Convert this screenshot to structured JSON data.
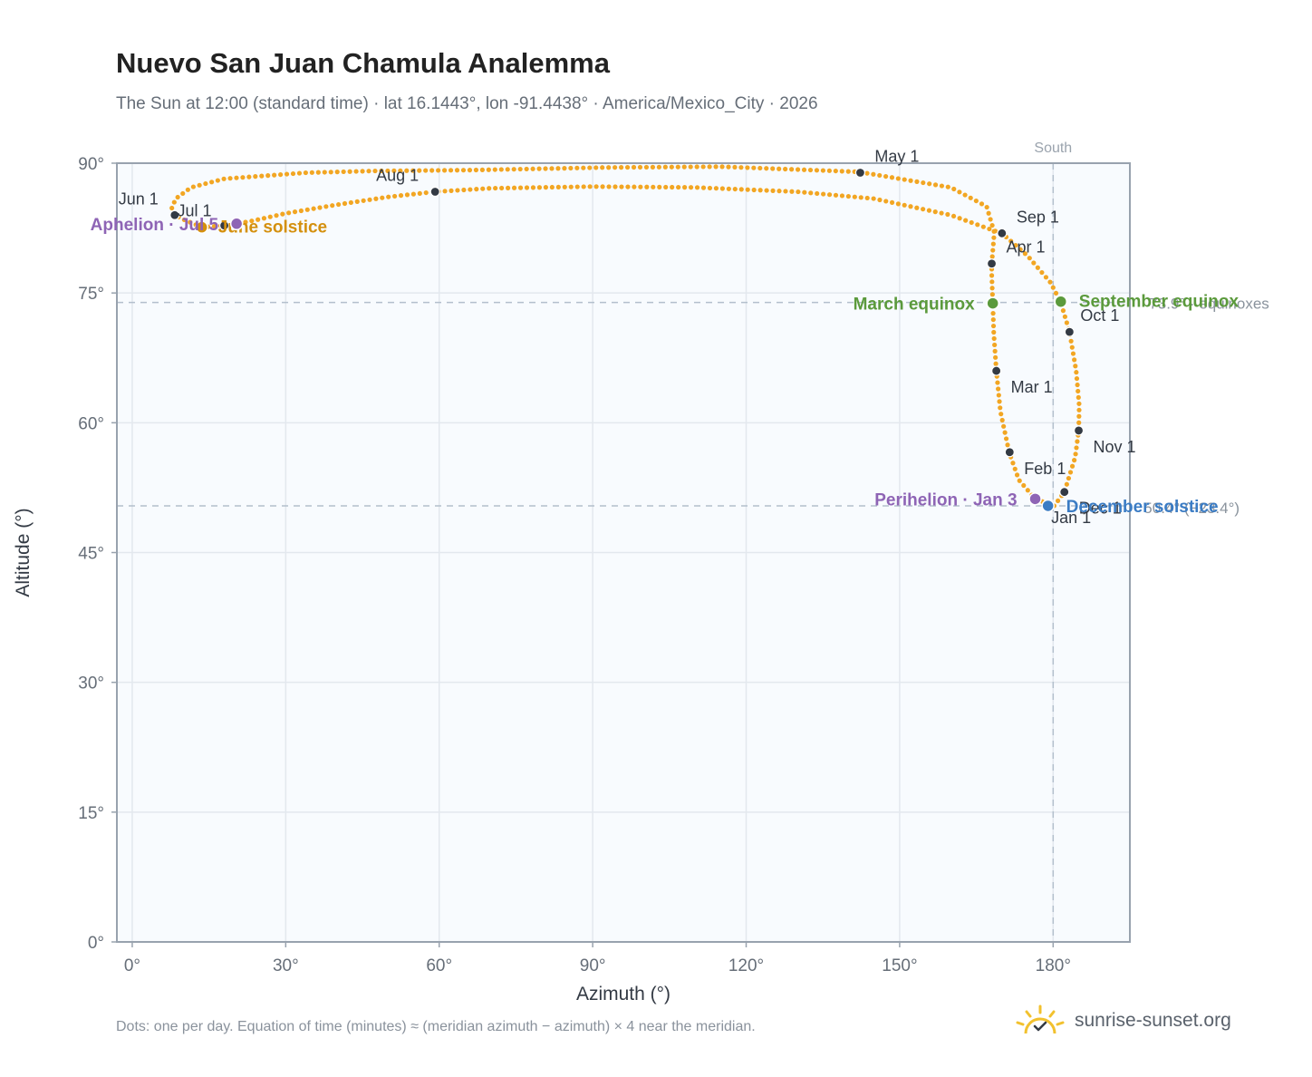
{
  "header": {
    "title": "Nuevo San Juan Chamula Analemma",
    "subtitle": "The Sun at 12:00 (standard time) · lat 16.1443°, lon -91.4438° · America/Mexico_City · 2026"
  },
  "footer": {
    "note": "Dots: one per day. Equation of time (minutes) ≈ (meridian azimuth − azimuth) × 4 near the meridian.",
    "brand": "sunrise-sunset.org"
  },
  "chart_data": {
    "type": "scatter",
    "xlabel": "Azimuth (°)",
    "ylabel": "Altitude (°)",
    "xlim": [
      -3,
      195
    ],
    "ylim": [
      0,
      90
    ],
    "xticks": [
      0,
      30,
      60,
      90,
      120,
      150,
      180
    ],
    "xtick_labels": [
      "0°",
      "30°",
      "60°",
      "90°",
      "120°",
      "150°",
      "180°"
    ],
    "yticks": [
      0,
      15,
      30,
      45,
      60,
      75,
      90
    ],
    "ytick_labels": [
      "0°",
      "15°",
      "30°",
      "45°",
      "60°",
      "75°",
      "90°"
    ],
    "grid": true,
    "south_line": {
      "azimuth": 180,
      "label": "South"
    },
    "reference_lines": [
      {
        "altitude": 73.9,
        "label": "73.9° · equinoxes"
      },
      {
        "altitude": 50.4,
        "label": "50.4° (−23.4°)"
      }
    ],
    "path_anchors": [
      [
        180.2,
        50.4
      ],
      [
        176.5,
        51.2
      ],
      [
        173.3,
        53.4
      ],
      [
        171.4,
        56.6
      ],
      [
        169.7,
        61.3
      ],
      [
        168.9,
        66.0
      ],
      [
        168.4,
        70.3
      ],
      [
        168.2,
        73.9
      ],
      [
        168.0,
        77.1
      ],
      [
        168.0,
        78.4
      ],
      [
        168.5,
        82.0
      ],
      [
        167.0,
        85.0
      ],
      [
        160.0,
        87.2
      ],
      [
        142.0,
        89.0
      ],
      [
        115.0,
        89.6
      ],
      [
        92.0,
        89.5
      ],
      [
        66.0,
        89.2
      ],
      [
        47.0,
        89.1
      ],
      [
        34.0,
        88.9
      ],
      [
        18.0,
        88.2
      ],
      [
        11.5,
        87.2
      ],
      [
        8.5,
        85.9
      ],
      [
        7.6,
        84.6
      ],
      [
        8.3,
        84.0
      ],
      [
        10.0,
        83.5
      ],
      [
        13.6,
        82.6
      ],
      [
        18.0,
        82.8
      ],
      [
        20.4,
        83.0
      ],
      [
        24.0,
        83.4
      ],
      [
        30.0,
        84.2
      ],
      [
        40.0,
        85.2
      ],
      [
        50.0,
        86.1
      ],
      [
        59.2,
        86.7
      ],
      [
        70.0,
        87.1
      ],
      [
        90.0,
        87.3
      ],
      [
        110.0,
        87.2
      ],
      [
        130.0,
        86.7
      ],
      [
        145.0,
        85.9
      ],
      [
        160.0,
        84.0
      ],
      [
        168.0,
        82.3
      ],
      [
        170.0,
        81.9
      ],
      [
        175.0,
        79.3
      ],
      [
        179.5,
        76.2
      ],
      [
        181.5,
        73.9
      ],
      [
        183.2,
        70.5
      ],
      [
        184.5,
        66.0
      ],
      [
        185.1,
        62.0
      ],
      [
        185.0,
        59.1
      ],
      [
        184.3,
        56.0
      ],
      [
        182.2,
        52.0
      ],
      [
        180.2,
        50.4
      ]
    ],
    "month_points": [
      {
        "label": "Jan 1",
        "az": 178.9,
        "alt": 50.5
      },
      {
        "label": "Feb 1",
        "az": 171.5,
        "alt": 56.6
      },
      {
        "label": "Mar 1",
        "az": 168.9,
        "alt": 66.0
      },
      {
        "label": "Apr 1",
        "az": 168.0,
        "alt": 78.4
      },
      {
        "label": "May 1",
        "az": 142.3,
        "alt": 88.9
      },
      {
        "label": "Jun 1",
        "az": 8.3,
        "alt": 84.0
      },
      {
        "label": "Jul 1",
        "az": 18.0,
        "alt": 82.8
      },
      {
        "label": "Aug 1",
        "az": 59.2,
        "alt": 86.7
      },
      {
        "label": "Sep 1",
        "az": 170.0,
        "alt": 81.9
      },
      {
        "label": "Oct 1",
        "az": 183.2,
        "alt": 70.5
      },
      {
        "label": "Nov 1",
        "az": 185.0,
        "alt": 59.1
      },
      {
        "label": "Dec 1",
        "az": 182.2,
        "alt": 52.0
      }
    ],
    "key_points": [
      {
        "label": "March equinox",
        "az": 168.2,
        "alt": 73.8,
        "color": "#5b9a3c"
      },
      {
        "label": "September equinox",
        "az": 181.5,
        "alt": 74.0,
        "color": "#5b9a3c"
      },
      {
        "label": "June solstice",
        "az": 13.6,
        "alt": 82.6,
        "color": "#d4900e"
      },
      {
        "label": "December solstice",
        "az": 179.0,
        "alt": 50.4,
        "color": "#3b7cc4"
      },
      {
        "label": "Perihelion · Jan 3",
        "az": 176.5,
        "alt": 51.2,
        "color": "#8e64b5"
      },
      {
        "label": "Aphelion · Jul 5",
        "az": 20.4,
        "alt": 83.0,
        "color": "#8e64b5"
      }
    ],
    "colors": {
      "path": "#f2a623",
      "month_dot": "#333a44",
      "grid": "#e3e8ee",
      "plot_bg": "#f8fbfe",
      "axis": "#98a2ae",
      "reference": "#b3bfcc"
    }
  }
}
